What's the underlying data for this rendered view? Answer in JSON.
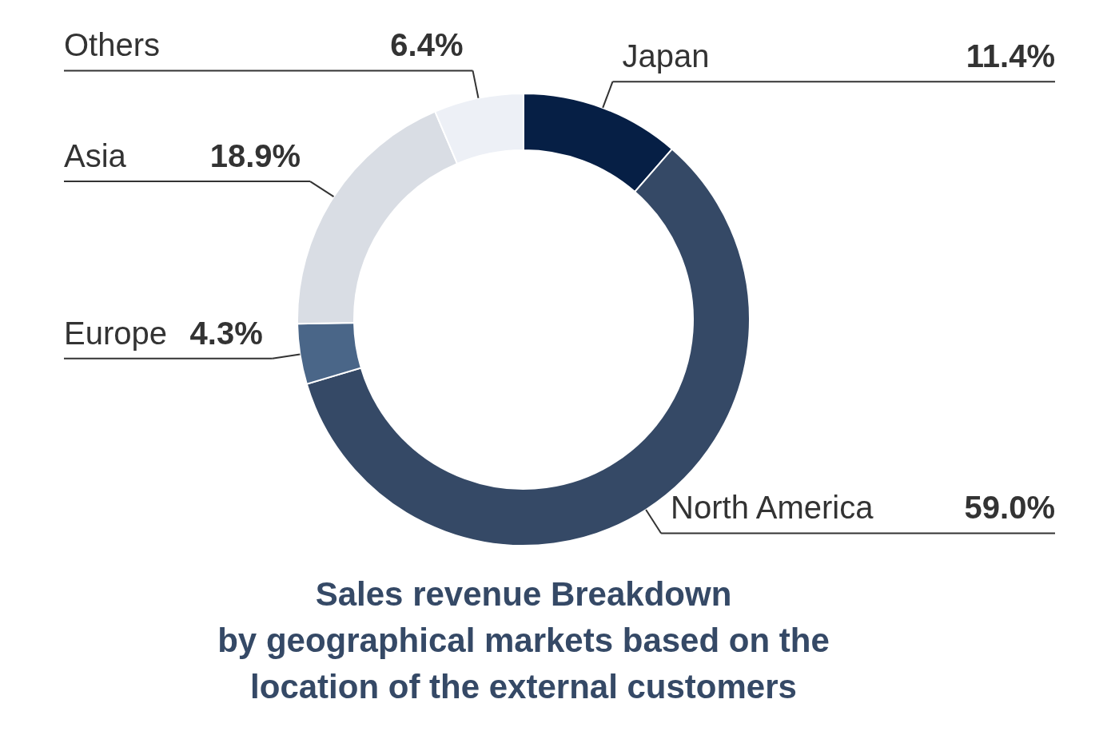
{
  "chart_data": {
    "type": "donut",
    "title": "Sales revenue Breakdown\nby geographical markets based on the\nlocation of the external customers",
    "categories": [
      "Japan",
      "North America",
      "Europe",
      "Asia",
      "Others"
    ],
    "values": [
      11.4,
      59.0,
      4.3,
      18.9,
      6.4
    ],
    "colors": [
      "#061f45",
      "#354966",
      "#4a6688",
      "#d9dde4",
      "#edf0f6"
    ],
    "value_labels": [
      "11.4%",
      "59.0%",
      "4.3%",
      "18.9%",
      "6.4%"
    ]
  }
}
